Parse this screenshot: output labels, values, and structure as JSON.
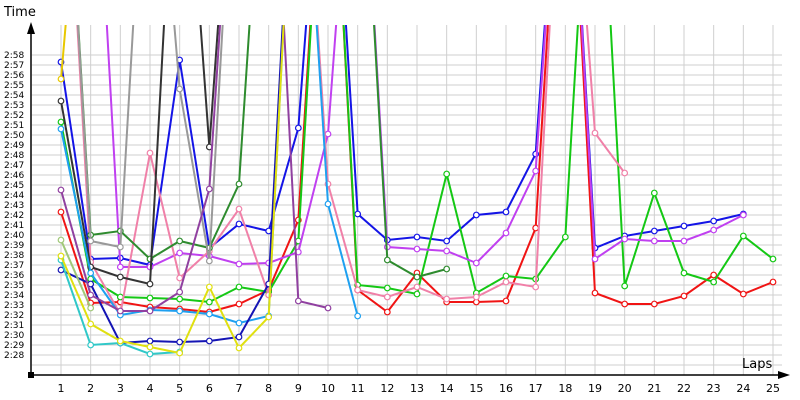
{
  "chart_data": {
    "type": "line",
    "title": "",
    "xlabel": "Laps",
    "ylabel": "Time",
    "x": [
      1,
      2,
      3,
      4,
      5,
      6,
      7,
      8,
      9,
      10,
      11,
      12,
      13,
      14,
      15,
      16,
      17,
      18,
      19,
      20,
      21,
      22,
      23,
      24,
      25
    ],
    "y_tick_labels": [
      "2:28",
      "2:29",
      "2:30",
      "2:31",
      "2:32",
      "2:33",
      "2:34",
      "2:35",
      "2:36",
      "2:37",
      "2:38",
      "2:39",
      "2:40",
      "2:41",
      "2:42",
      "2:43",
      "2:44",
      "2:45",
      "2:46",
      "2:47",
      "2:48",
      "2:49",
      "2:50",
      "2:51",
      "2:52",
      "2:53",
      "2:54",
      "2:55",
      "2:56",
      "2:57",
      "2:58"
    ],
    "ylim": [
      "2:28",
      "2:58"
    ],
    "y_units": "seconds past 2:00 (null = not shown, values >60 = off chart/pit lap)",
    "grid": true,
    "legend": "none",
    "series": [
      {
        "name": "blue",
        "color": "#1414e6",
        "values": [
          57.3,
          37.6,
          37.7,
          37.0,
          57.5,
          38.7,
          41.1,
          40.4,
          50.7,
          90,
          42.1,
          39.5,
          39.8,
          39.4,
          42.0,
          42.3,
          48.1,
          90,
          38.7,
          39.9,
          40.4,
          40.9,
          41.4,
          42.1,
          null
        ]
      },
      {
        "name": "red",
        "color": "#f01414",
        "values": [
          42.3,
          33.2,
          33.3,
          32.8,
          32.6,
          32.3,
          33.1,
          34.5,
          41.5,
          90,
          34.5,
          32.3,
          36.2,
          33.3,
          33.3,
          33.4,
          40.7,
          90,
          34.2,
          33.1,
          33.1,
          33.9,
          36.0,
          34.1,
          35.3
        ]
      },
      {
        "name": "green",
        "color": "#14c814",
        "values": [
          51.3,
          35.6,
          33.8,
          33.7,
          33.6,
          33.3,
          34.8,
          34.3,
          39.4,
          90,
          35.0,
          34.7,
          34.1,
          46.1,
          34.2,
          35.9,
          35.6,
          39.8,
          90,
          34.9,
          44.2,
          36.2,
          35.3,
          39.9,
          37.6
        ]
      },
      {
        "name": "magenta",
        "color": "#c040f0",
        "values": [
          90,
          90,
          36.8,
          36.8,
          38.2,
          37.9,
          37.1,
          37.2,
          38.3,
          50.1,
          90,
          38.8,
          38.6,
          38.4,
          37.2,
          40.2,
          46.4,
          90,
          37.6,
          39.6,
          39.4,
          39.4,
          40.5,
          42.0,
          null
        ]
      },
      {
        "name": "pink",
        "color": "#f080a8",
        "values": [
          90,
          37.3,
          32.1,
          48.2,
          35.7,
          38.4,
          42.6,
          34.0,
          90,
          45.1,
          34.5,
          33.8,
          34.8,
          33.6,
          33.8,
          35.3,
          34.8,
          90,
          50.2,
          46.2,
          null,
          null,
          null,
          null,
          null
        ]
      },
      {
        "name": "dark-green",
        "color": "#2e8b2e",
        "values": [
          90,
          40.0,
          40.4,
          37.6,
          39.4,
          38.7,
          45.1,
          90,
          null,
          null,
          90,
          37.5,
          35.8,
          36.6,
          null,
          null,
          null,
          null,
          null,
          null,
          null,
          null,
          null,
          null,
          null
        ]
      },
      {
        "name": "gray",
        "color": "#999999",
        "values": [
          90,
          39.4,
          38.8,
          90,
          54.6,
          37.4,
          90,
          null,
          null,
          null,
          null,
          null,
          null,
          null,
          null,
          null,
          null,
          null,
          null,
          null,
          null,
          null,
          null,
          null,
          null
        ]
      },
      {
        "name": "black",
        "color": "#333333",
        "values": [
          53.4,
          36.8,
          35.8,
          35.1,
          90,
          48.8,
          90,
          null,
          null,
          null,
          null,
          null,
          null,
          null,
          null,
          null,
          null,
          null,
          null,
          null,
          null,
          null,
          null,
          null,
          null
        ]
      },
      {
        "name": "sky-blue",
        "color": "#1ea0f0",
        "values": [
          50.6,
          36.2,
          32.0,
          32.5,
          32.4,
          32.1,
          31.2,
          31.9,
          90,
          43.1,
          31.9,
          null,
          null,
          null,
          null,
          null,
          null,
          null,
          null,
          null,
          null,
          null,
          null,
          null,
          null
        ]
      },
      {
        "name": "navy",
        "color": "#1414b4",
        "values": [
          36.5,
          35.1,
          29.2,
          29.4,
          29.3,
          29.4,
          29.8,
          35.1,
          90,
          null,
          null,
          null,
          null,
          null,
          null,
          null,
          null,
          null,
          null,
          null,
          null,
          null,
          null,
          null,
          null
        ]
      },
      {
        "name": "purple",
        "color": "#9040a0",
        "values": [
          44.5,
          34.0,
          32.4,
          32.4,
          34.3,
          44.6,
          90,
          90,
          33.4,
          32.7,
          null,
          null,
          null,
          null,
          null,
          null,
          null,
          null,
          null,
          null,
          null,
          null,
          null,
          null,
          null
        ]
      },
      {
        "name": "cyan",
        "color": "#30c8c8",
        "values": [
          37.5,
          29.0,
          29.2,
          28.1,
          28.3,
          null,
          null,
          null,
          null,
          null,
          null,
          null,
          null,
          null,
          null,
          null,
          null,
          null,
          null,
          null,
          null,
          null,
          null,
          null,
          null
        ]
      },
      {
        "name": "yellow",
        "color": "#e0e010",
        "values": [
          37.9,
          31.1,
          29.4,
          28.8,
          28.2,
          34.8,
          28.7,
          31.8,
          90,
          null,
          null,
          null,
          null,
          null,
          null,
          null,
          null,
          null,
          null,
          null,
          null,
          null,
          null,
          null,
          null
        ]
      },
      {
        "name": "olive-green",
        "color": "#a0c878",
        "values": [
          39.5,
          32.7,
          null,
          null,
          null,
          null,
          null,
          null,
          null,
          null,
          null,
          null,
          null,
          null,
          null,
          null,
          null,
          null,
          null,
          null,
          null,
          null,
          null,
          null,
          null
        ]
      },
      {
        "name": "orange-yellow",
        "color": "#e8c800",
        "values": [
          55.6,
          90,
          null,
          null,
          null,
          null,
          null,
          null,
          null,
          null,
          null,
          null,
          null,
          null,
          null,
          null,
          null,
          null,
          null,
          null,
          null,
          null,
          null,
          null,
          null
        ]
      }
    ]
  },
  "axes": {
    "y_title": "Time",
    "x_title": "Laps"
  }
}
